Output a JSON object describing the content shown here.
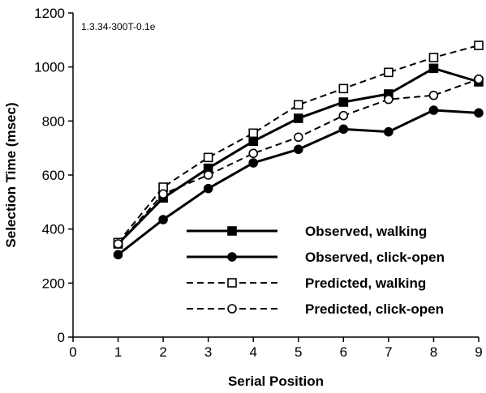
{
  "chart_data": {
    "type": "line",
    "title": "",
    "annotation": "1.3.34-300T-0.1e",
    "xlabel": "Serial Position",
    "ylabel": "Selection Time (msec)",
    "xlim": [
      0,
      9
    ],
    "ylim": [
      0,
      1200
    ],
    "xticks": [
      0,
      1,
      2,
      3,
      4,
      5,
      6,
      7,
      8,
      9
    ],
    "yticks": [
      0,
      200,
      400,
      600,
      800,
      1000,
      1200
    ],
    "grid": false,
    "legend_position": "bottom-right",
    "x": [
      1,
      2,
      3,
      4,
      5,
      6,
      7,
      8,
      9
    ],
    "series": [
      {
        "name": "Observed, walking",
        "line": "solid",
        "marker": "filled-square",
        "values": [
          345,
          515,
          625,
          725,
          810,
          870,
          900,
          995,
          945
        ]
      },
      {
        "name": "Observed, click-open",
        "line": "solid",
        "marker": "filled-circle",
        "values": [
          305,
          435,
          550,
          645,
          695,
          770,
          760,
          840,
          830
        ]
      },
      {
        "name": "Predicted, walking",
        "line": "dashed",
        "marker": "open-square",
        "values": [
          350,
          555,
          665,
          755,
          860,
          920,
          980,
          1035,
          1080
        ]
      },
      {
        "name": "Predicted, click-open",
        "line": "dashed",
        "marker": "open-circle",
        "values": [
          345,
          530,
          600,
          680,
          740,
          820,
          880,
          895,
          955
        ]
      }
    ]
  }
}
